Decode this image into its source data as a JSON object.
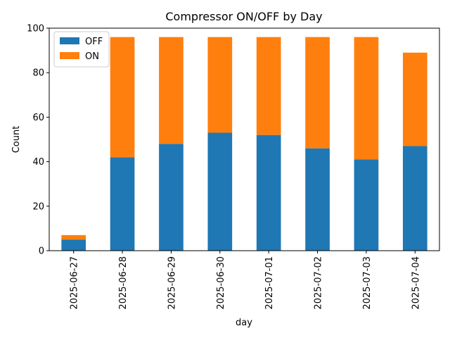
{
  "chart_data": {
    "type": "bar",
    "stacked": true,
    "title": "Compressor ON/OFF by Day",
    "xlabel": "day",
    "ylabel": "Count",
    "categories": [
      "2025-06-27",
      "2025-06-28",
      "2025-06-29",
      "2025-06-30",
      "2025-07-01",
      "2025-07-02",
      "2025-07-03",
      "2025-07-04"
    ],
    "series": [
      {
        "name": "OFF",
        "color": "#1f77b4",
        "values": [
          5,
          42,
          48,
          53,
          52,
          46,
          41,
          47
        ]
      },
      {
        "name": "ON",
        "color": "#ff7f0e",
        "values": [
          2,
          54,
          48,
          43,
          44,
          50,
          55,
          42
        ]
      }
    ],
    "ylim": [
      0,
      100
    ],
    "yticks": [
      0,
      20,
      40,
      60,
      80,
      100
    ],
    "grid": false,
    "legend_position": "top-left"
  }
}
